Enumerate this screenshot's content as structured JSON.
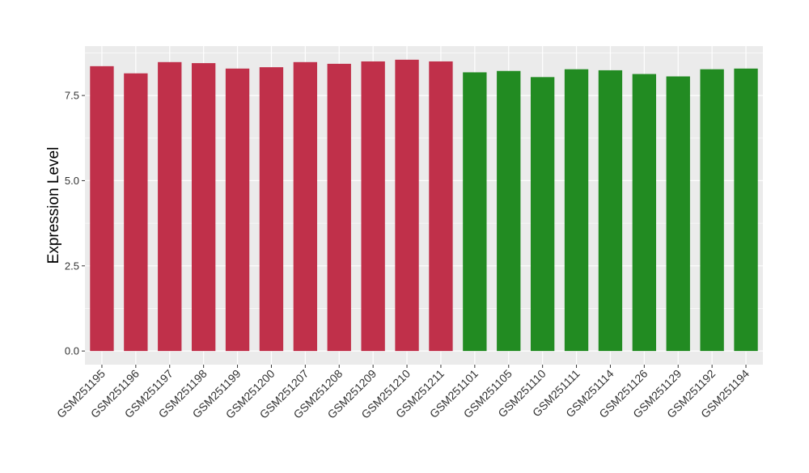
{
  "chart_data": {
    "type": "bar",
    "title": "",
    "xlabel": "",
    "ylabel": "Expression Level",
    "ylim": [
      -0.4,
      8.95
    ],
    "yticks": [
      0.0,
      2.5,
      5.0,
      7.5
    ],
    "ytick_labels": [
      "0.0",
      "2.5",
      "5.0",
      "7.5"
    ],
    "grid": true,
    "legend": "none",
    "categories": [
      "GSM251195",
      "GSM251196",
      "GSM251197",
      "GSM251198",
      "GSM251199",
      "GSM251200",
      "GSM251207",
      "GSM251208",
      "GSM251209",
      "GSM251210",
      "GSM251211",
      "GSM251101",
      "GSM251105",
      "GSM251110",
      "GSM251111",
      "GSM251114",
      "GSM251126",
      "GSM251129",
      "GSM251192",
      "GSM251194"
    ],
    "values": [
      8.36,
      8.15,
      8.48,
      8.45,
      8.29,
      8.33,
      8.48,
      8.43,
      8.5,
      8.55,
      8.5,
      8.18,
      8.22,
      8.04,
      8.27,
      8.24,
      8.13,
      8.06,
      8.27,
      8.29
    ],
    "bar_colors": [
      "#C0304A",
      "#C0304A",
      "#C0304A",
      "#C0304A",
      "#C0304A",
      "#C0304A",
      "#C0304A",
      "#C0304A",
      "#C0304A",
      "#C0304A",
      "#C0304A",
      "#228B22",
      "#228B22",
      "#228B22",
      "#228B22",
      "#228B22",
      "#228B22",
      "#228B22",
      "#228B22",
      "#228B22"
    ],
    "panel_background": "#EBEBEB",
    "grid_color": "#FFFFFF"
  }
}
